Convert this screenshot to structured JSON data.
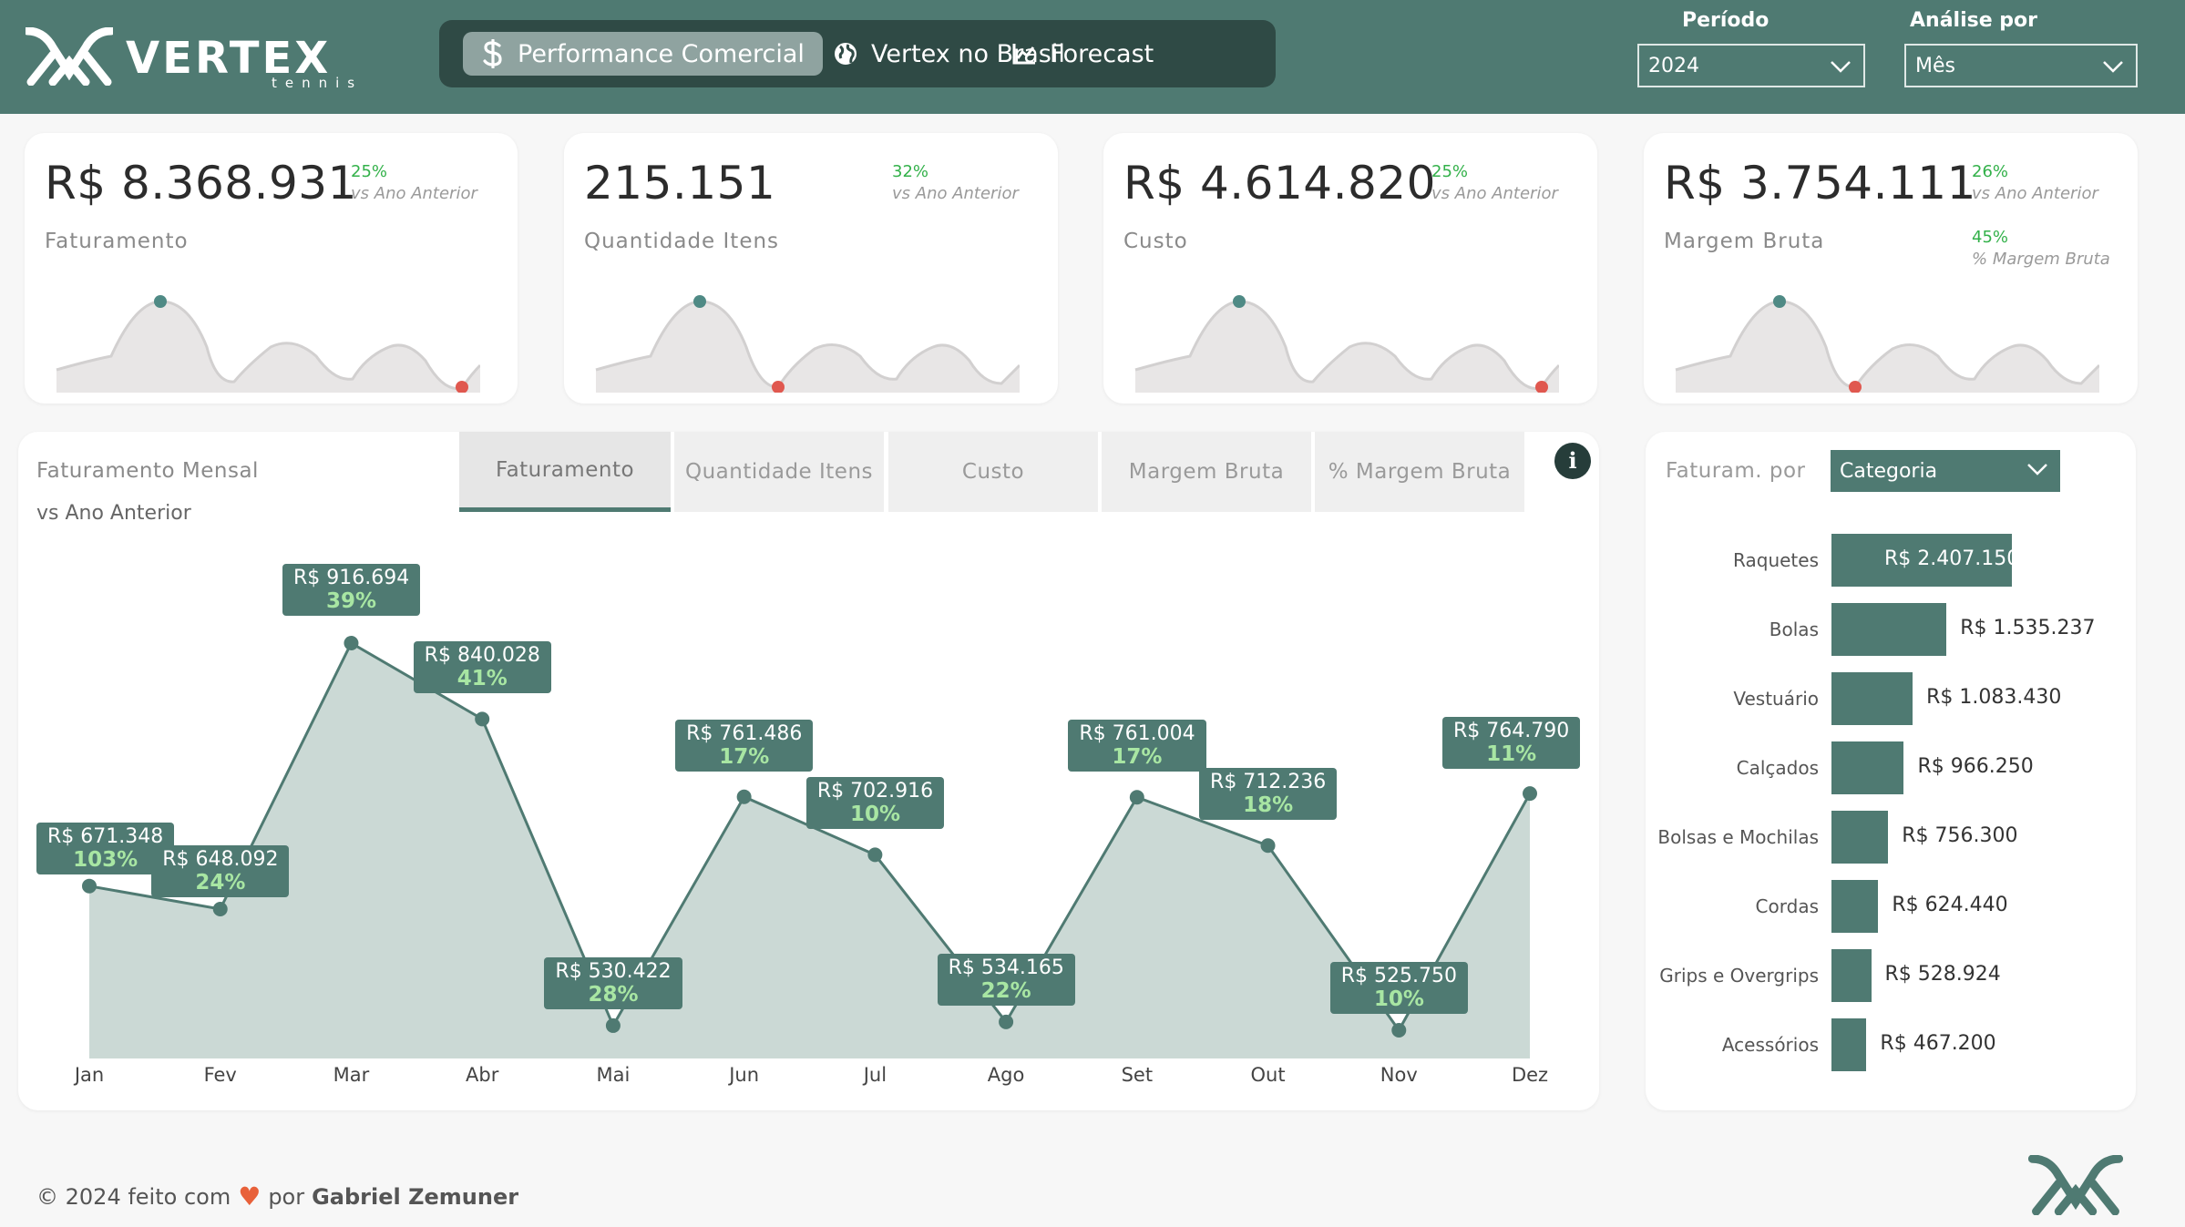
{
  "brand": {
    "name": "VERTEX",
    "tagline": "tennis"
  },
  "nav": [
    {
      "label": "Performance Comercial",
      "icon": "dollar-icon"
    },
    {
      "label": "Vertex no Brasil",
      "icon": "globe-icon"
    },
    {
      "label": "Forecast",
      "icon": "trend-chart-icon"
    }
  ],
  "filters": {
    "periodo_label": "Período",
    "periodo_value": "2024",
    "analise_label": "Análise por",
    "analise_value": "Mês"
  },
  "kpis": [
    {
      "value": "R$ 8.368.931",
      "label": "Faturamento",
      "pct": "25%",
      "sub": "vs Ano Anterior"
    },
    {
      "value": "215.151",
      "label": "Quantidade Itens",
      "pct": "32%",
      "sub": "vs Ano Anterior"
    },
    {
      "value": "R$ 4.614.820",
      "label": "Custo",
      "pct": "25%",
      "sub": "vs Ano Anterior"
    },
    {
      "value": "R$ 3.754.111",
      "label": "Margem Bruta",
      "pct": "26%",
      "sub": "vs Ano Anterior",
      "pct2": "45%",
      "sub2": "% Margem Bruta"
    }
  ],
  "chart": {
    "title": "Faturamento Mensal",
    "subtitle": "vs Ano Anterior",
    "tabs": [
      "Faturamento",
      "Quantidade Itens",
      "Custo",
      "Margem Bruta",
      "% Margem Bruta"
    ],
    "info_label": "i"
  },
  "chart_data": [
    {
      "type": "area",
      "title": "Faturamento Mensal",
      "subtitle": "vs Ano Anterior",
      "categories": [
        "Jan",
        "Fev",
        "Mar",
        "Abr",
        "Mai",
        "Jun",
        "Jul",
        "Ago",
        "Set",
        "Out",
        "Nov",
        "Dez"
      ],
      "values": [
        671348,
        648092,
        916694,
        840028,
        530422,
        761486,
        702916,
        534165,
        761004,
        712236,
        525750,
        764790
      ],
      "value_labels": [
        "R$ 671.348",
        "R$ 648.092",
        "R$ 916.694",
        "R$ 840.028",
        "R$ 530.422",
        "R$ 761.486",
        "R$ 702.916",
        "R$ 534.165",
        "R$ 761.004",
        "R$ 712.236",
        "R$ 525.750",
        "R$ 764.790"
      ],
      "growth_labels": [
        "103%",
        "24%",
        "39%",
        "41%",
        "28%",
        "17%",
        "10%",
        "22%",
        "17%",
        "18%",
        "10%",
        "11%"
      ],
      "ylim": [
        350000,
        1000000
      ],
      "grid": false,
      "colors": {
        "line": "#4f7a72",
        "fill": "#cbd9d5",
        "label_bg": "#4f7a72",
        "growth": "#a8e6a3"
      }
    },
    {
      "type": "bar",
      "orientation": "horizontal",
      "title": "Faturam. por",
      "categories": [
        "Raquetes",
        "Bolas",
        "Vestuário",
        "Calçados",
        "Bolsas e Mochilas",
        "Cordas",
        "Grips e Overgrips",
        "Acessórios"
      ],
      "values": [
        2407150,
        1535237,
        1083430,
        966250,
        756300,
        624440,
        528924,
        467200
      ],
      "value_labels": [
        "R$ 2.407.150",
        "R$ 1.535.237",
        "R$ 1.083.430",
        "R$ 966.250",
        "R$ 756.300",
        "R$ 624.440",
        "R$ 528.924",
        "R$ 467.200"
      ],
      "xlim": [
        0,
        2407150
      ],
      "colors": {
        "bar": "#4f7a72"
      }
    }
  ],
  "breakdown": {
    "title": "Faturam. por",
    "select_value": "Categoria"
  },
  "footer": {
    "prefix": "© 2024 feito com",
    "by": "por",
    "author": "Gabriel Zemuner"
  },
  "colors": {
    "header": "#4f7a72",
    "nav_bg": "#2f4a45",
    "positive": "#33b14a",
    "min_point": "#e0584f",
    "max_point": "#4f8a85"
  }
}
